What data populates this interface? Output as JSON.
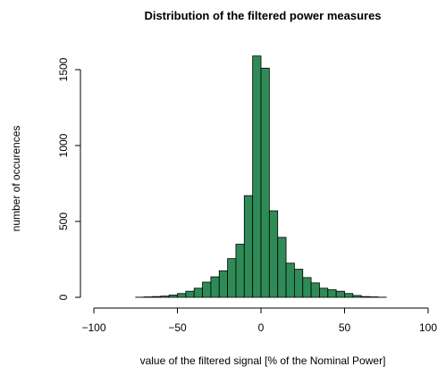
{
  "chart_data": {
    "type": "histogram",
    "title": "Distribution of the filtered power measures",
    "x_label": "value of the filtered signal [% of the Nominal Power]",
    "y_label": "number of occurences",
    "bins": [
      -100,
      -95,
      -90,
      -85,
      -80,
      -75,
      -70,
      -65,
      -60,
      -55,
      -50,
      -45,
      -40,
      -35,
      -30,
      -25,
      -20,
      -15,
      -10,
      -5,
      0,
      5,
      10,
      15,
      20,
      25,
      30,
      35,
      40,
      45,
      50,
      55,
      60,
      65,
      70,
      75,
      80,
      85,
      90,
      95,
      100
    ],
    "values": [
      0,
      0,
      0,
      0,
      0,
      1,
      3,
      5,
      8,
      15,
      25,
      40,
      60,
      100,
      135,
      175,
      255,
      350,
      670,
      1590,
      1510,
      570,
      395,
      225,
      185,
      130,
      95,
      60,
      50,
      40,
      25,
      12,
      5,
      3,
      1,
      0,
      0,
      0,
      0,
      0
    ],
    "color": "#2e8b57",
    "xlim": [
      -100,
      100
    ],
    "xticks": [
      {
        "value": -100,
        "label": "−100"
      },
      {
        "value": -50,
        "label": "−50"
      },
      0,
      50,
      100
    ],
    "ylim": [
      0,
      1600
    ],
    "yticks": [
      0,
      500,
      1000,
      1500
    ]
  }
}
